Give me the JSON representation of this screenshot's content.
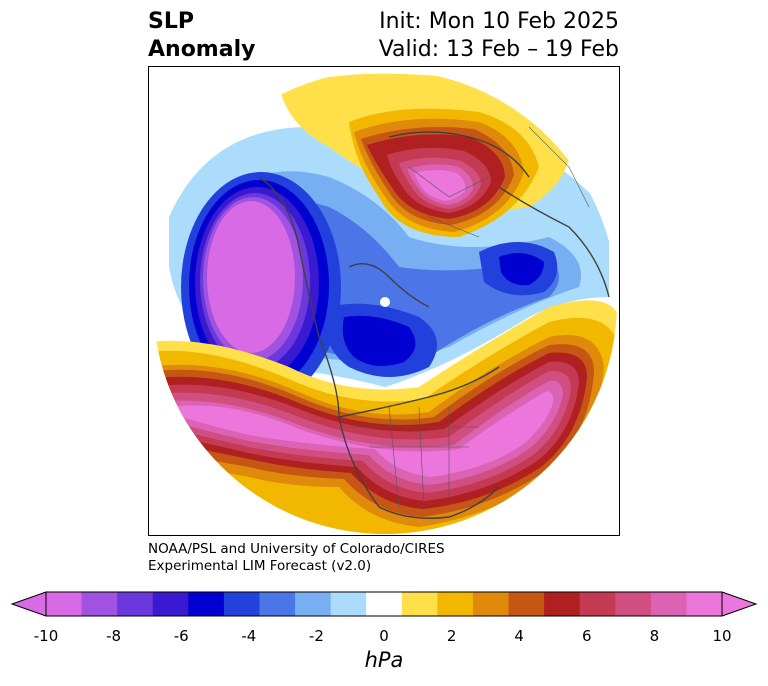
{
  "title": {
    "variable_line1": "SLP",
    "variable_line2": "Anomaly",
    "init": "Init: Mon 10 Feb 2025",
    "valid": "Valid: 13 Feb – 19 Feb"
  },
  "credit": {
    "line1": "NOAA/PSL and University of Colorado/CIRES",
    "line2": "Experimental LIM Forecast (v2.0)"
  },
  "colorbar": {
    "unit": "hPa",
    "ticks": [
      "-10",
      "-8",
      "-6",
      "-4",
      "-2",
      "0",
      "2",
      "4",
      "6",
      "8",
      "10"
    ],
    "colors": [
      "#d86ae6",
      "#a052e0",
      "#6a38dc",
      "#3a1ad0",
      "#0000d0",
      "#2240dc",
      "#4c76e8",
      "#78aef2",
      "#acdcfc",
      "#ffffff",
      "#ffe04a",
      "#f2b800",
      "#e08a0c",
      "#c65614",
      "#b02020",
      "#c43a52",
      "#d04e80",
      "#dc62b4",
      "#ec76dc"
    ],
    "extend_low_color": "#d86ae6",
    "extend_high_color": "#ec76dc"
  }
}
